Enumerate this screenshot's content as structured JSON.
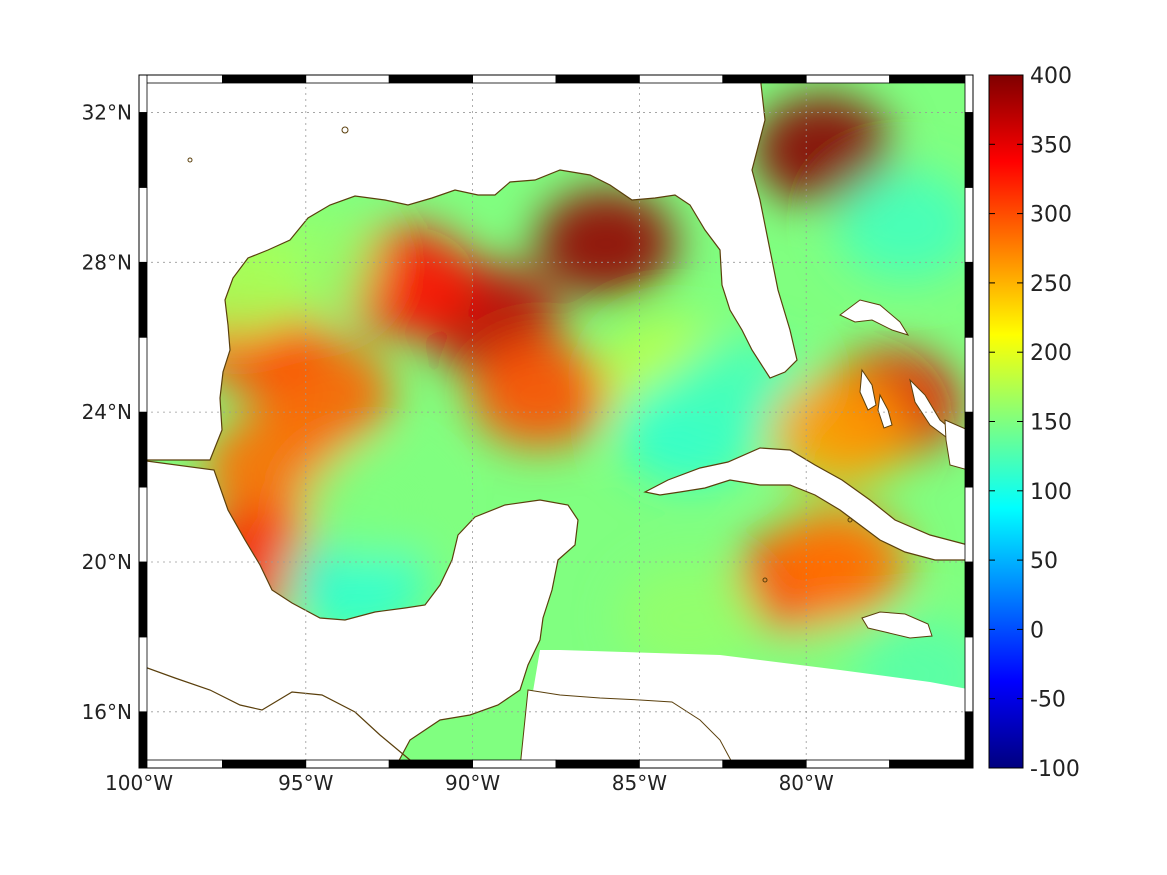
{
  "map": {
    "lon_range": [
      -100,
      -75
    ],
    "lat_range": [
      14.5,
      33
    ],
    "lon_ticks": [
      {
        "value": -100,
        "label": "100°W"
      },
      {
        "value": -95,
        "label": "95°W"
      },
      {
        "value": -90,
        "label": "90°W"
      },
      {
        "value": -85,
        "label": "85°W"
      },
      {
        "value": -80,
        "label": "80°W"
      }
    ],
    "lat_ticks": [
      {
        "value": 32,
        "label": "32°N"
      },
      {
        "value": 28,
        "label": "28°N"
      },
      {
        "value": 24,
        "label": "24°N"
      },
      {
        "value": 20,
        "label": "20°N"
      },
      {
        "value": 16,
        "label": "16°N"
      }
    ],
    "grid": true,
    "coastline_color": "#5a3f0c",
    "ocean_blobs": [
      {
        "lon": -89.5,
        "lat": 26.5,
        "value": 370
      },
      {
        "lon": -86.0,
        "lat": 28.5,
        "value": 390
      },
      {
        "lon": -92.0,
        "lat": 27.5,
        "value": 330
      },
      {
        "lon": -88.0,
        "lat": 24.5,
        "value": 300
      },
      {
        "lon": -94.5,
        "lat": 24.5,
        "value": 290
      },
      {
        "lon": -96.0,
        "lat": 22.5,
        "value": 285
      },
      {
        "lon": -96.5,
        "lat": 26.0,
        "value": 300
      },
      {
        "lon": -96.5,
        "lat": 20.0,
        "value": 320
      },
      {
        "lon": -93.5,
        "lat": 19.5,
        "value": 110
      },
      {
        "lon": -93.0,
        "lat": 21.5,
        "value": 150
      },
      {
        "lon": -95.0,
        "lat": 28.0,
        "value": 160
      },
      {
        "lon": -97.0,
        "lat": 27.5,
        "value": 170
      },
      {
        "lon": -84.0,
        "lat": 25.0,
        "value": 180
      },
      {
        "lon": -83.5,
        "lat": 23.5,
        "value": 110
      },
      {
        "lon": -82.0,
        "lat": 24.5,
        "value": 120
      },
      {
        "lon": -80.0,
        "lat": 19.5,
        "value": 330
      },
      {
        "lon": -79.0,
        "lat": 20.0,
        "value": 280
      },
      {
        "lon": -77.5,
        "lat": 24.2,
        "value": 350
      },
      {
        "lon": -79.0,
        "lat": 23.5,
        "value": 260
      },
      {
        "lon": -79.5,
        "lat": 31.0,
        "value": 395
      },
      {
        "lon": -77.0,
        "lat": 29.0,
        "value": 120
      },
      {
        "lon": -83.5,
        "lat": 18.5,
        "value": 160
      },
      {
        "lon": -79.0,
        "lat": 17.0,
        "value": 150
      },
      {
        "lon": -76.5,
        "lat": 17.0,
        "value": 130
      }
    ]
  },
  "colorbar": {
    "min": -100,
    "max": 400,
    "tick_labels": [
      "400",
      "350",
      "300",
      "250",
      "200",
      "150",
      "100",
      "50",
      "0",
      "-50",
      "-100"
    ],
    "colormap": "jet"
  }
}
